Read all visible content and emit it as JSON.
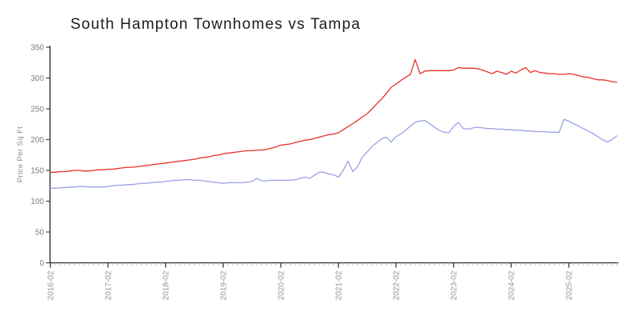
{
  "title": "South Hampton Townhomes vs Tampa",
  "chart_data": {
    "type": "line",
    "title": "South Hampton Townhomes vs Tampa",
    "xlabel": "",
    "ylabel": "Price Per Sq Ft",
    "ylim": [
      0,
      350
    ],
    "y_ticks": [
      0,
      50,
      100,
      150,
      200,
      250,
      300,
      350
    ],
    "grid": false,
    "legend_position": "none",
    "x_start_month": "2016-02",
    "x_end_month": "2025-12",
    "x_tick_labels": [
      "2016-02",
      "2017-02",
      "2018-02",
      "2019-02",
      "2020-02",
      "2021-02",
      "2022-02",
      "2023-02",
      "2024-02",
      "2025-02"
    ],
    "x_major_tick_every_months": 12,
    "x_minor_tick_every_months": 1,
    "series": [
      {
        "name": "South Hampton Townhomes",
        "color": "#e8302a",
        "values": [
          147,
          147,
          148,
          148,
          149,
          150,
          150,
          149,
          149,
          150,
          151,
          151,
          152,
          152,
          153,
          154,
          155,
          155,
          156,
          157,
          158,
          159,
          160,
          161,
          162,
          163,
          164,
          165,
          166,
          167,
          168,
          170,
          171,
          172,
          174,
          175,
          177,
          178,
          179,
          180,
          181,
          182,
          182,
          183,
          183,
          184,
          186,
          188,
          191,
          192,
          193,
          195,
          197,
          199,
          200,
          202,
          204,
          206,
          208,
          209,
          211,
          216,
          221,
          226,
          231,
          237,
          242,
          250,
          258,
          266,
          275,
          285,
          290,
          296,
          301,
          306,
          330,
          307,
          311,
          312,
          312,
          312,
          312,
          312,
          313,
          317,
          316,
          316,
          316,
          315,
          313,
          310,
          307,
          311,
          309,
          306,
          311,
          308,
          313,
          317,
          309,
          312,
          309,
          308,
          307,
          307,
          306,
          306,
          307,
          306,
          304,
          302,
          301,
          299,
          297,
          297,
          296,
          294,
          293
        ]
      },
      {
        "name": "Tampa",
        "color": "#99a1e3",
        "values": [
          121,
          121,
          122,
          122,
          123,
          123,
          124,
          124,
          123,
          123,
          123,
          123,
          124,
          125,
          126,
          126,
          127,
          127,
          128,
          129,
          129,
          130,
          131,
          131,
          132,
          133,
          134,
          134,
          135,
          135,
          134,
          134,
          133,
          132,
          131,
          130,
          129,
          130,
          130,
          130,
          130,
          131,
          132,
          137,
          133,
          133,
          134,
          134,
          134,
          134,
          134,
          135,
          137,
          139,
          137,
          142,
          147,
          147,
          144,
          143,
          139,
          150,
          165,
          148,
          156,
          172,
          180,
          189,
          195,
          201,
          204,
          196,
          205,
          209,
          215,
          222,
          228,
          230,
          231,
          226,
          220,
          215,
          212,
          211,
          221,
          228,
          218,
          217,
          219,
          220,
          219,
          218,
          218,
          217,
          217,
          216,
          216,
          215,
          215,
          214,
          214,
          213,
          213,
          213,
          212,
          212,
          212,
          233,
          230,
          226,
          222,
          218,
          214,
          210,
          205,
          200,
          196,
          200,
          206
        ]
      }
    ],
    "axis_color": "#222222",
    "major_tick_color": "#444444",
    "minor_tick_color": "#c2c2c2"
  }
}
